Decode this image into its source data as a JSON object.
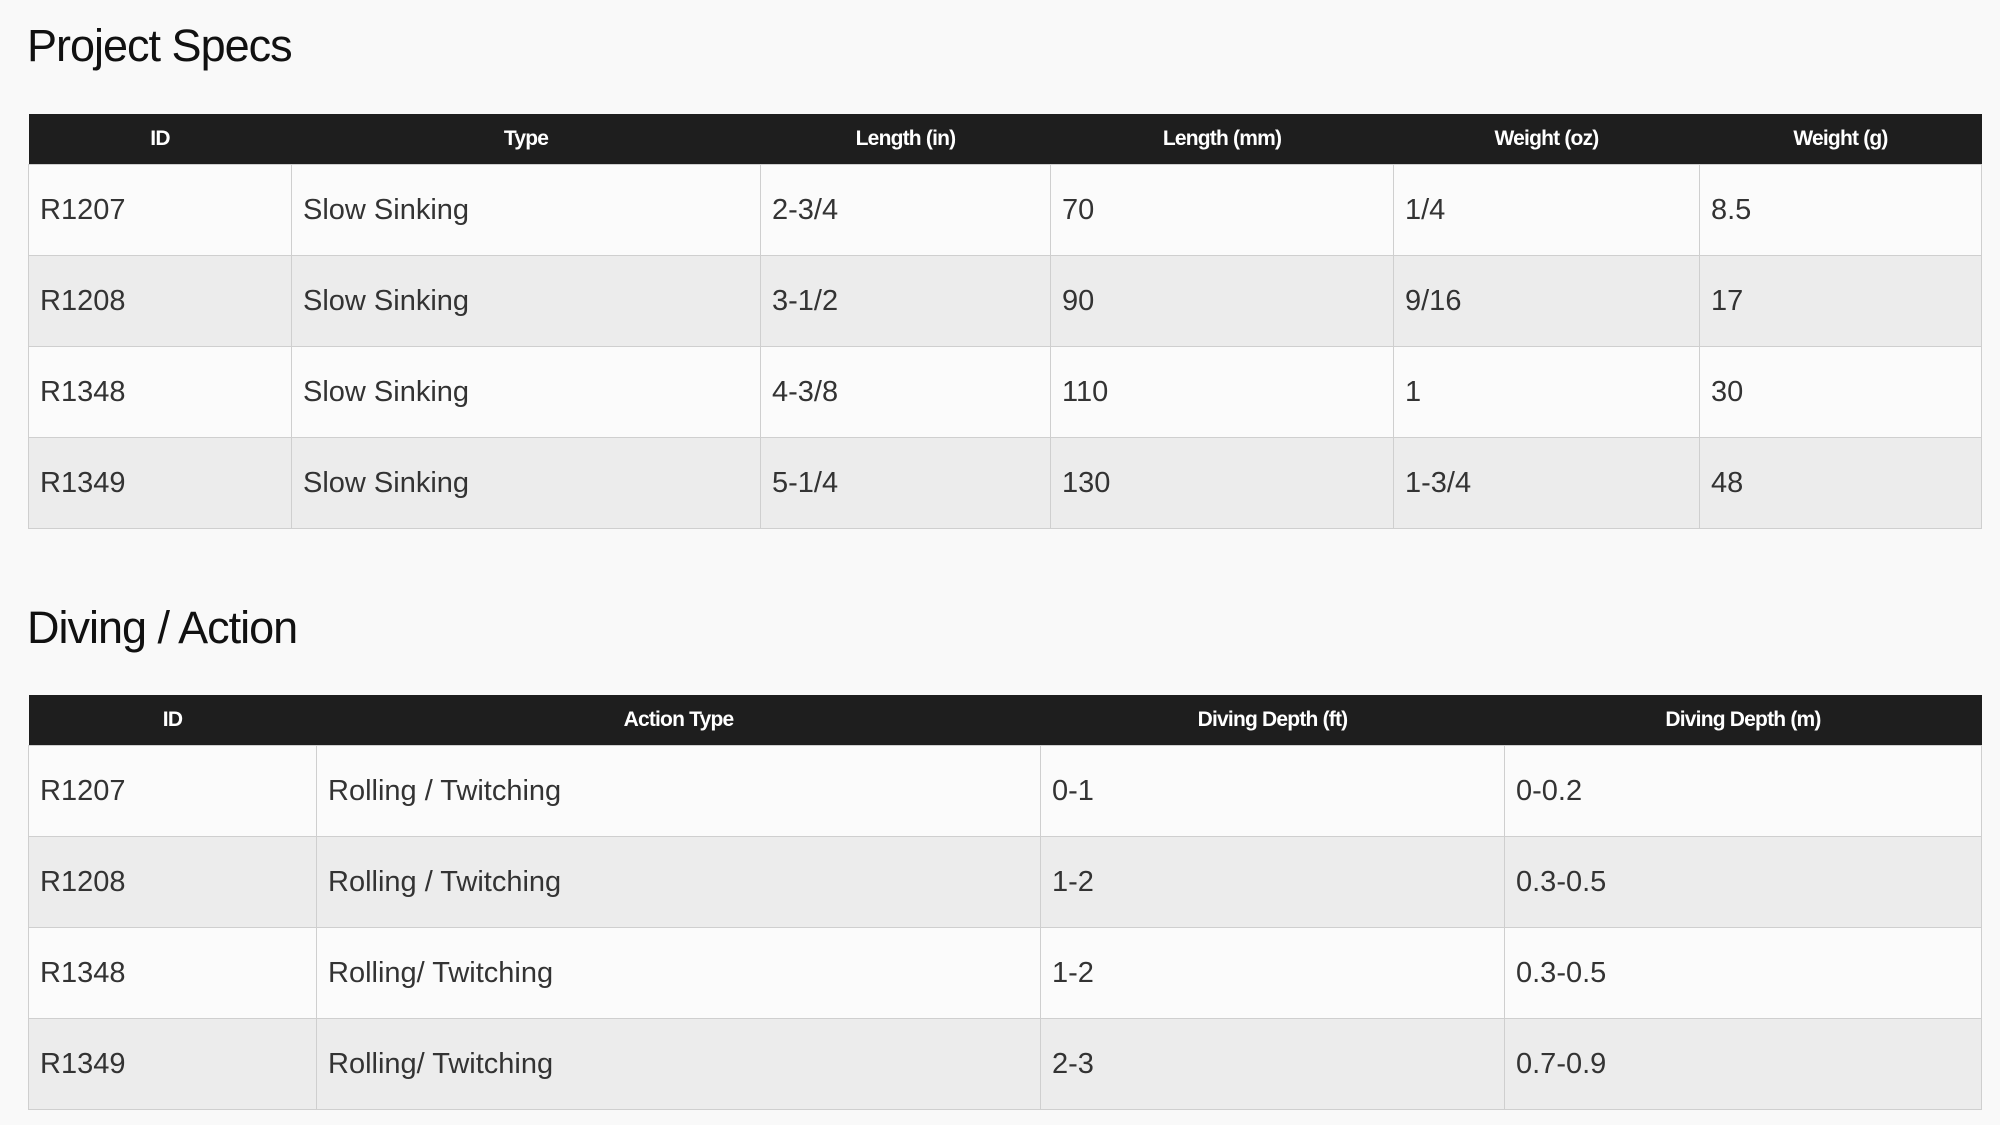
{
  "specs": {
    "title": "Project Specs",
    "headers": [
      "ID",
      "Type",
      "Length (in)",
      "Length (mm)",
      "Weight (oz)",
      "Weight (g)"
    ],
    "rows": [
      [
        "R1207",
        "Slow Sinking",
        "2-3/4",
        "70",
        "1/4",
        "8.5"
      ],
      [
        "R1208",
        "Slow Sinking",
        "3-1/2",
        "90",
        "9/16",
        "17"
      ],
      [
        "R1348",
        "Slow Sinking",
        "4-3/8",
        "110",
        "1",
        "30"
      ],
      [
        "R1349",
        "Slow Sinking",
        "5-1/4",
        "130",
        "1-3/4",
        "48"
      ]
    ]
  },
  "diving": {
    "title": "Diving / Action",
    "headers": [
      "ID",
      "Action Type",
      "Diving Depth (ft)",
      "Diving Depth (m)"
    ],
    "rows": [
      [
        "R1207",
        "Rolling / Twitching",
        "0-1",
        "0-0.2"
      ],
      [
        "R1208",
        "Rolling / Twitching",
        "1-2",
        "0.3-0.5"
      ],
      [
        "R1348",
        "Rolling/ Twitching",
        "1-2",
        "0.3-0.5"
      ],
      [
        "R1349",
        "Rolling/ Twitching",
        "2-3",
        "0.7-0.9"
      ]
    ]
  },
  "colors": {
    "header_bg": "#1e1e1e",
    "row_alt": "#ececec",
    "page_bg": "#f9f9f9"
  }
}
